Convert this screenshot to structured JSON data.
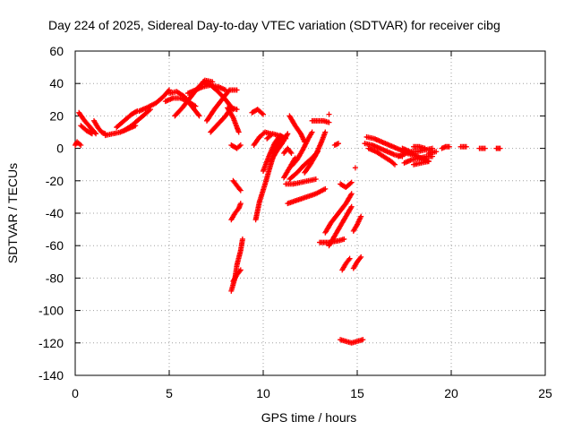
{
  "chart_data": {
    "type": "scatter",
    "title": "Day 224 of 2025, Sidereal Day-to-day VTEC variation (SDTVAR) for receiver cibg",
    "xlabel": "GPS time / hours",
    "ylabel": "SDTVAR / TECUs",
    "xlim": [
      0,
      25
    ],
    "ylim": [
      -140,
      60
    ],
    "xticks": [
      0,
      5,
      10,
      15,
      20,
      25
    ],
    "yticks": [
      -140,
      -120,
      -100,
      -80,
      -60,
      -40,
      -20,
      0,
      20,
      40,
      60
    ],
    "grid": true,
    "marker": "+",
    "series_color": "#ff0000",
    "tracks": [
      [
        [
          0.0,
          2
        ],
        [
          0.1,
          4
        ],
        [
          0.3,
          2
        ]
      ],
      [
        [
          0.2,
          22
        ],
        [
          0.5,
          17
        ],
        [
          0.8,
          13
        ],
        [
          1.1,
          9
        ]
      ],
      [
        [
          0.3,
          14
        ],
        [
          0.6,
          11
        ],
        [
          0.9,
          9
        ]
      ],
      [
        [
          1.0,
          17
        ],
        [
          1.2,
          13
        ],
        [
          1.4,
          10
        ],
        [
          1.6,
          9
        ]
      ],
      [
        [
          1.6,
          8
        ],
        [
          2.0,
          9
        ],
        [
          2.4,
          10
        ],
        [
          2.8,
          12
        ],
        [
          3.2,
          14
        ]
      ],
      [
        [
          2.2,
          13
        ],
        [
          2.6,
          17
        ],
        [
          3.0,
          21
        ],
        [
          3.3,
          23
        ]
      ],
      [
        [
          2.6,
          11
        ],
        [
          3.0,
          14
        ],
        [
          3.4,
          18
        ],
        [
          3.8,
          22
        ],
        [
          4.0,
          24
        ]
      ],
      [
        [
          3.4,
          23
        ],
        [
          3.8,
          25
        ],
        [
          4.3,
          28
        ],
        [
          4.7,
          32
        ],
        [
          5.0,
          36
        ]
      ],
      [
        [
          4.8,
          29
        ],
        [
          5.2,
          31
        ],
        [
          5.6,
          31
        ],
        [
          6.0,
          29
        ],
        [
          6.4,
          26
        ]
      ],
      [
        [
          5.0,
          34
        ],
        [
          5.4,
          35
        ],
        [
          5.8,
          32
        ],
        [
          6.2,
          26
        ],
        [
          6.6,
          20
        ]
      ],
      [
        [
          5.3,
          20
        ],
        [
          5.7,
          25
        ],
        [
          6.1,
          31
        ],
        [
          6.5,
          37
        ],
        [
          6.9,
          42
        ],
        [
          7.3,
          41
        ]
      ],
      [
        [
          6.0,
          34
        ],
        [
          6.4,
          36
        ],
        [
          6.8,
          38
        ],
        [
          7.2,
          39
        ],
        [
          7.6,
          38
        ],
        [
          8.0,
          36
        ]
      ],
      [
        [
          6.8,
          41
        ],
        [
          7.2,
          39
        ],
        [
          7.6,
          35
        ],
        [
          8.0,
          30
        ],
        [
          8.4,
          24
        ]
      ],
      [
        [
          7.0,
          17
        ],
        [
          7.4,
          24
        ],
        [
          7.8,
          30
        ],
        [
          8.2,
          36
        ],
        [
          8.6,
          36
        ]
      ],
      [
        [
          7.2,
          10
        ],
        [
          7.6,
          15
        ],
        [
          8.0,
          20
        ],
        [
          8.3,
          25
        ],
        [
          8.6,
          24
        ]
      ],
      [
        [
          8.1,
          25
        ],
        [
          8.4,
          19
        ],
        [
          8.6,
          13
        ],
        [
          8.7,
          10
        ]
      ],
      [
        [
          8.3,
          2
        ],
        [
          8.6,
          0
        ],
        [
          8.8,
          2
        ]
      ],
      [
        [
          8.4,
          -20
        ],
        [
          8.6,
          -23
        ],
        [
          8.8,
          -26
        ]
      ],
      [
        [
          8.3,
          -44
        ],
        [
          8.5,
          -40
        ],
        [
          8.7,
          -37
        ],
        [
          8.8,
          -34
        ]
      ],
      [
        [
          8.3,
          -88
        ],
        [
          8.5,
          -80
        ],
        [
          8.6,
          -72
        ],
        [
          8.8,
          -63
        ],
        [
          8.9,
          -56
        ]
      ],
      [
        [
          8.4,
          -82
        ],
        [
          8.6,
          -78
        ],
        [
          8.8,
          -75
        ]
      ],
      [
        [
          9.4,
          22
        ],
        [
          9.7,
          24
        ],
        [
          10.0,
          21
        ]
      ],
      [
        [
          9.5,
          2
        ],
        [
          9.8,
          7
        ],
        [
          10.1,
          10
        ],
        [
          10.4,
          9
        ]
      ],
      [
        [
          9.6,
          -44
        ],
        [
          9.8,
          -33
        ],
        [
          10.1,
          -22
        ],
        [
          10.4,
          -10
        ],
        [
          10.7,
          1
        ],
        [
          11.0,
          7
        ]
      ],
      [
        [
          10.0,
          -14
        ],
        [
          10.3,
          -5
        ],
        [
          10.6,
          3
        ],
        [
          10.9,
          8
        ],
        [
          11.2,
          6
        ]
      ],
      [
        [
          10.2,
          6
        ],
        [
          10.5,
          9
        ],
        [
          10.8,
          8
        ],
        [
          11.0,
          4
        ]
      ],
      [
        [
          10.4,
          -8
        ],
        [
          10.7,
          -2
        ],
        [
          11.0,
          3
        ],
        [
          11.3,
          9
        ]
      ],
      [
        [
          11.1,
          -3
        ],
        [
          11.3,
          0
        ],
        [
          11.5,
          -3
        ]
      ],
      [
        [
          11.4,
          20
        ],
        [
          11.7,
          14
        ],
        [
          12.0,
          9
        ],
        [
          12.2,
          4
        ]
      ],
      [
        [
          11.1,
          -18
        ],
        [
          11.3,
          -14
        ],
        [
          11.5,
          -10
        ],
        [
          11.7,
          -6
        ]
      ],
      [
        [
          11.4,
          -19
        ],
        [
          11.8,
          -15
        ],
        [
          12.2,
          -10
        ],
        [
          12.6,
          -6
        ],
        [
          12.9,
          -2
        ]
      ],
      [
        [
          11.2,
          -22
        ],
        [
          11.6,
          -22
        ],
        [
          12.0,
          -21
        ],
        [
          12.4,
          -20
        ],
        [
          12.8,
          -19
        ]
      ],
      [
        [
          11.5,
          -11
        ],
        [
          11.8,
          -7
        ],
        [
          12.1,
          -1
        ],
        [
          12.4,
          6
        ],
        [
          12.6,
          10
        ]
      ],
      [
        [
          12.2,
          -15
        ],
        [
          12.5,
          -10
        ],
        [
          12.8,
          -4
        ],
        [
          13.1,
          4
        ],
        [
          13.3,
          10
        ]
      ],
      [
        [
          11.3,
          -34
        ],
        [
          11.8,
          -32
        ],
        [
          12.3,
          -30
        ],
        [
          12.8,
          -28
        ],
        [
          13.3,
          -25
        ]
      ],
      [
        [
          12.6,
          17
        ],
        [
          12.9,
          17
        ],
        [
          13.2,
          17
        ],
        [
          13.5,
          16
        ]
      ],
      [
        [
          13.5,
          21
        ]
      ],
      [
        [
          13.0,
          -58
        ],
        [
          13.5,
          -58
        ],
        [
          14.0,
          -57
        ],
        [
          14.3,
          -56
        ]
      ],
      [
        [
          13.3,
          -52
        ],
        [
          13.6,
          -46
        ],
        [
          14.0,
          -40
        ],
        [
          14.4,
          -34
        ],
        [
          14.7,
          -28
        ]
      ],
      [
        [
          13.5,
          -60
        ],
        [
          13.8,
          -54
        ],
        [
          14.1,
          -48
        ],
        [
          14.4,
          -42
        ],
        [
          14.7,
          -36
        ]
      ],
      [
        [
          13.8,
          2
        ],
        [
          14.0,
          3
        ]
      ],
      [
        [
          14.1,
          -22
        ],
        [
          14.4,
          -24
        ],
        [
          14.7,
          -21
        ]
      ],
      [
        [
          14.2,
          -75
        ],
        [
          14.4,
          -71
        ],
        [
          14.6,
          -68
        ]
      ],
      [
        [
          14.9,
          -12
        ]
      ],
      [
        [
          14.8,
          -74
        ],
        [
          15.0,
          -70
        ],
        [
          15.2,
          -67
        ]
      ],
      [
        [
          14.8,
          -51
        ],
        [
          15.0,
          -47
        ],
        [
          15.2,
          -42
        ]
      ],
      [
        [
          14.1,
          -118
        ],
        [
          14.4,
          -119
        ],
        [
          14.7,
          -120
        ],
        [
          15.0,
          -119
        ],
        [
          15.3,
          -118
        ]
      ],
      [
        [
          15.5,
          7
        ],
        [
          15.9,
          6
        ],
        [
          16.3,
          4
        ],
        [
          16.7,
          2
        ],
        [
          17.1,
          0
        ],
        [
          17.5,
          -2
        ],
        [
          17.9,
          -3
        ]
      ],
      [
        [
          15.4,
          3
        ],
        [
          15.8,
          2
        ],
        [
          16.2,
          0
        ],
        [
          16.6,
          -2
        ],
        [
          17.0,
          -4
        ],
        [
          17.4,
          -5
        ]
      ],
      [
        [
          15.6,
          0
        ],
        [
          16.0,
          -2
        ],
        [
          16.4,
          -5
        ],
        [
          16.8,
          -8
        ],
        [
          17.0,
          -10
        ]
      ],
      [
        [
          17.2,
          -5
        ],
        [
          17.6,
          -3
        ],
        [
          18.0,
          -4
        ],
        [
          18.4,
          -6
        ],
        [
          18.8,
          -8
        ]
      ],
      [
        [
          17.4,
          0
        ],
        [
          17.8,
          -2
        ],
        [
          18.2,
          -2
        ],
        [
          18.6,
          -1
        ],
        [
          19.0,
          0
        ]
      ],
      [
        [
          17.5,
          -9
        ],
        [
          17.9,
          -7
        ],
        [
          18.3,
          -6
        ],
        [
          18.7,
          -5
        ],
        [
          19.0,
          -5
        ]
      ],
      [
        [
          18.0,
          -10
        ],
        [
          18.4,
          -9
        ],
        [
          18.8,
          -8
        ]
      ],
      [
        [
          18.0,
          1
        ],
        [
          18.3,
          1
        ],
        [
          18.6,
          0
        ]
      ],
      [
        [
          18.8,
          -3
        ],
        [
          19.2,
          -2
        ]
      ],
      [
        [
          19.5,
          0
        ],
        [
          19.7,
          1
        ],
        [
          19.9,
          1
        ]
      ],
      [
        [
          20.5,
          1
        ],
        [
          20.8,
          1
        ]
      ],
      [
        [
          21.5,
          0
        ],
        [
          21.8,
          0
        ]
      ],
      [
        [
          22.4,
          0
        ],
        [
          22.6,
          0
        ]
      ]
    ]
  }
}
